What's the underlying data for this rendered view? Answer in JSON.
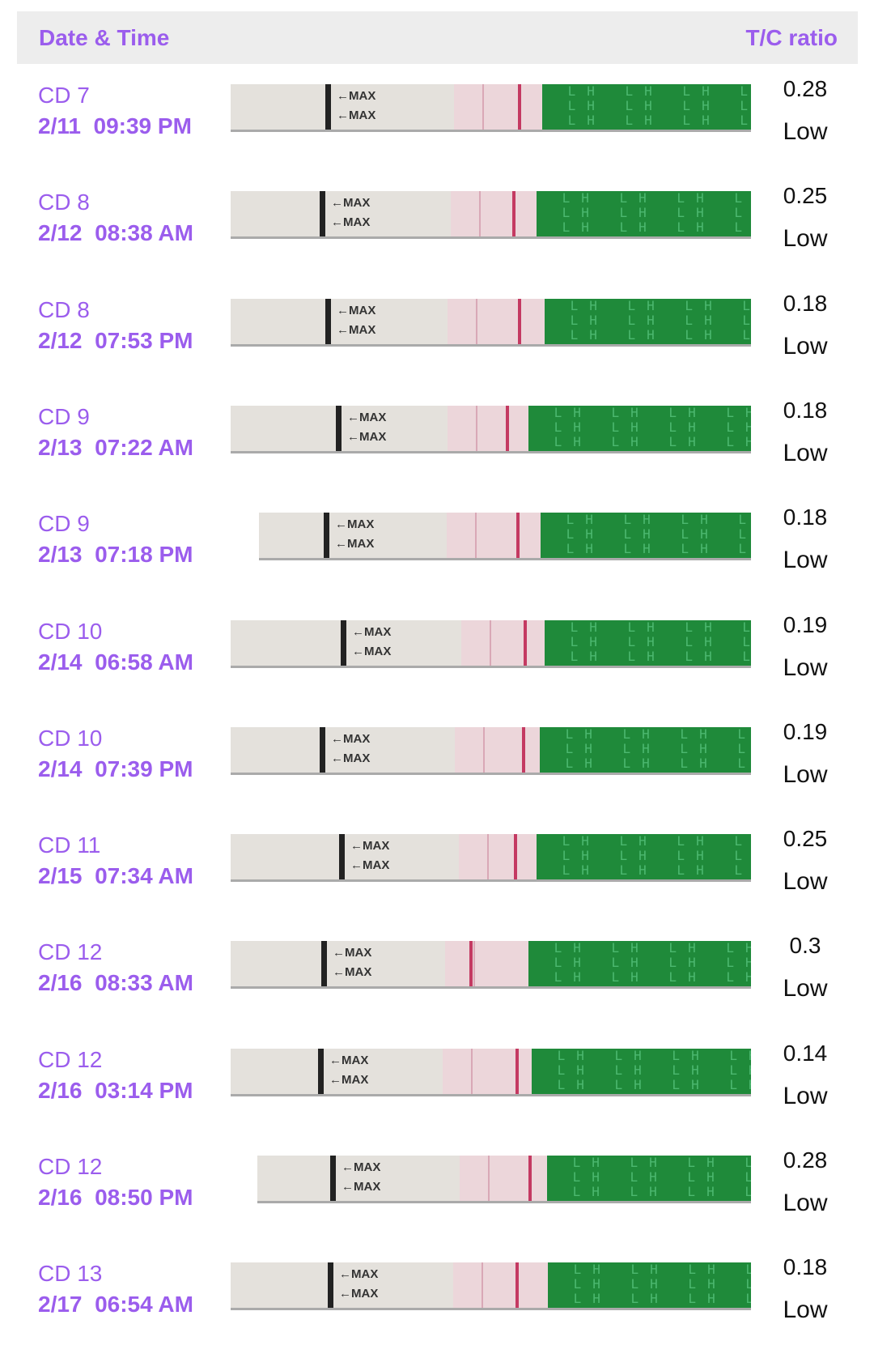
{
  "header": {
    "left": "Date & Time",
    "right": "T/C ratio"
  },
  "theme": {
    "accent": "#9b5ded",
    "strip_green": "#1f8a3a",
    "test_line": "#c43a62"
  },
  "strip_labels": {
    "max": "←MAX",
    "lh": "LH"
  },
  "rows": [
    {
      "cd": "CD 7",
      "date": "2/11",
      "time": "09:39 PM",
      "ratio": "0.28",
      "level": "Low"
    },
    {
      "cd": "CD 8",
      "date": "2/12",
      "time": "08:38 AM",
      "ratio": "0.25",
      "level": "Low"
    },
    {
      "cd": "CD 8",
      "date": "2/12",
      "time": "07:53 PM",
      "ratio": "0.18",
      "level": "Low"
    },
    {
      "cd": "CD 9",
      "date": "2/13",
      "time": "07:22 AM",
      "ratio": "0.18",
      "level": "Low"
    },
    {
      "cd": "CD 9",
      "date": "2/13",
      "time": "07:18 PM",
      "ratio": "0.18",
      "level": "Low"
    },
    {
      "cd": "CD 10",
      "date": "2/14",
      "time": "06:58 AM",
      "ratio": "0.19",
      "level": "Low"
    },
    {
      "cd": "CD 10",
      "date": "2/14",
      "time": "07:39 PM",
      "ratio": "0.19",
      "level": "Low"
    },
    {
      "cd": "CD 11",
      "date": "2/15",
      "time": "07:34 AM",
      "ratio": "0.25",
      "level": "Low"
    },
    {
      "cd": "CD 12",
      "date": "2/16",
      "time": "08:33 AM",
      "ratio": "0.3",
      "level": "Low"
    },
    {
      "cd": "CD 12",
      "date": "2/16",
      "time": "03:14 PM",
      "ratio": "0.14",
      "level": "Low"
    },
    {
      "cd": "CD 12",
      "date": "2/16",
      "time": "08:50 PM",
      "ratio": "0.28",
      "level": "Low"
    },
    {
      "cd": "CD 13",
      "date": "2/17",
      "time": "06:54 AM",
      "ratio": "0.18",
      "level": "Low"
    }
  ]
}
